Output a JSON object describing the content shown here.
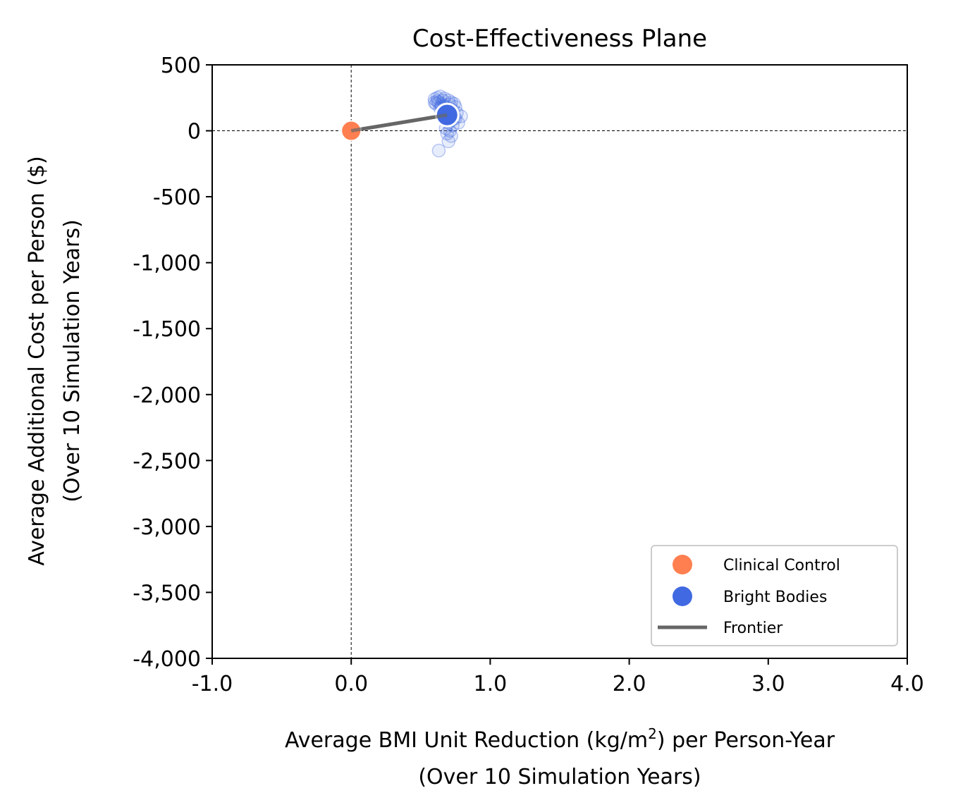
{
  "chart_data": {
    "type": "scatter",
    "title": "Cost-Effectiveness Plane",
    "xlabel_line1": "Average BMI Unit Reduction (kg/m",
    "xlabel_sup": "2",
    "xlabel_line1_end": ") per Person-Year",
    "xlabel_line2": "(Over 10 Simulation Years)",
    "ylabel_line1": "Average Additional Cost per Person ($)",
    "ylabel_line2": "(Over 10 Simulation Years)",
    "xlim": [
      -1.0,
      4.0
    ],
    "ylim": [
      -4000,
      500
    ],
    "xticks": [
      -1.0,
      0.0,
      1.0,
      2.0,
      3.0,
      4.0
    ],
    "xtick_labels": [
      "-1.0",
      "0.0",
      "1.0",
      "2.0",
      "3.0",
      "4.0"
    ],
    "yticks": [
      500,
      0,
      -500,
      -1000,
      -1500,
      -2000,
      -2500,
      -3000,
      -3500,
      -4000
    ],
    "ytick_labels": [
      "500",
      "0",
      "-500",
      "-1,000",
      "-1,500",
      "-2,000",
      "-2,500",
      "-3,000",
      "-3,500",
      "-4,000"
    ],
    "reference_lines": {
      "x": 0,
      "y": 0,
      "style": "dashed"
    },
    "legend_position": "lower-right",
    "series": [
      {
        "name": "Clinical Control",
        "color": "#ff7f50",
        "mean": {
          "x": 0.0,
          "y": 0
        }
      },
      {
        "name": "Bright Bodies",
        "color": "#4169e1",
        "mean": {
          "x": 0.69,
          "y": 120
        },
        "simulation_points": [
          [
            0.6,
            240
          ],
          [
            0.62,
            250
          ],
          [
            0.64,
            260
          ],
          [
            0.66,
            230
          ],
          [
            0.63,
            215
          ],
          [
            0.61,
            205
          ],
          [
            0.65,
            200
          ],
          [
            0.67,
            190
          ],
          [
            0.7,
            230
          ],
          [
            0.72,
            215
          ],
          [
            0.74,
            205
          ],
          [
            0.68,
            175
          ],
          [
            0.71,
            165
          ],
          [
            0.73,
            155
          ],
          [
            0.66,
            150
          ],
          [
            0.69,
            140
          ],
          [
            0.76,
            135
          ],
          [
            0.79,
            110
          ],
          [
            0.75,
            95
          ],
          [
            0.72,
            80
          ],
          [
            0.7,
            60
          ],
          [
            0.73,
            40
          ],
          [
            0.68,
            20
          ],
          [
            0.71,
            0
          ],
          [
            0.69,
            -20
          ],
          [
            0.72,
            -40
          ],
          [
            0.7,
            -80
          ],
          [
            0.63,
            -150
          ],
          [
            0.77,
            60
          ],
          [
            0.74,
            100
          ],
          [
            0.65,
            185
          ],
          [
            0.62,
            225
          ],
          [
            0.67,
            245
          ],
          [
            0.6,
            215
          ],
          [
            0.64,
            170
          ],
          [
            0.71,
            200
          ],
          [
            0.75,
            180
          ],
          [
            0.73,
            120
          ],
          [
            0.67,
            110
          ],
          [
            0.7,
            95
          ]
        ]
      },
      {
        "name": "Frontier",
        "color": "#666666",
        "line": [
          [
            0.0,
            0
          ],
          [
            0.69,
            120
          ]
        ]
      }
    ]
  }
}
